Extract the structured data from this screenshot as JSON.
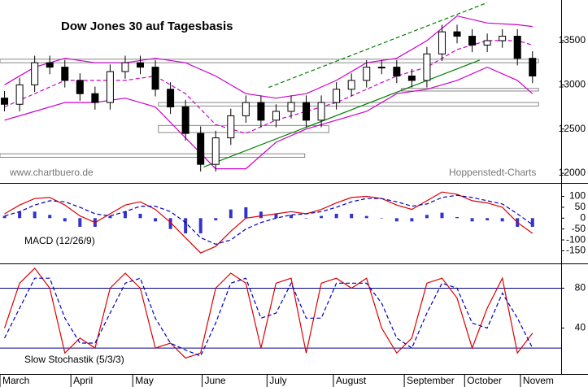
{
  "chart_data": [
    {
      "type": "candlestick",
      "title": "Dow Jones 30 auf Tagesbasis",
      "annotations": [
        "www.chartbuero.de",
        "Hoppenstedt-Charts"
      ],
      "xlim": [
        -0.3,
        36.9
      ],
      "ylim": [
        11890,
        13960
      ],
      "yticks": [
        12000,
        12500,
        13000,
        13500
      ],
      "x": [
        0,
        1,
        2,
        3,
        4,
        5,
        6,
        7,
        8,
        9,
        10,
        11,
        12,
        13,
        14,
        15,
        16,
        17,
        18,
        19,
        20,
        21,
        22,
        23,
        24,
        25,
        26,
        27,
        28,
        29,
        30,
        31,
        32,
        33,
        34,
        35
      ],
      "open": [
        12850,
        12780,
        13000,
        13250,
        13200,
        13050,
        12900,
        12800,
        13150,
        13250,
        13200,
        12950,
        12750,
        12450,
        12100,
        12400,
        12650,
        12800,
        12600,
        12700,
        12800,
        12600,
        12800,
        12950,
        13050,
        13200,
        13200,
        13100,
        13050,
        13350,
        13600,
        13550,
        13450,
        13500,
        13550,
        13300
      ],
      "high": [
        12930,
        13080,
        13330,
        13330,
        13280,
        13130,
        12980,
        13230,
        13330,
        13330,
        13280,
        13030,
        12830,
        12530,
        12480,
        12730,
        12880,
        12880,
        12780,
        12880,
        12880,
        12880,
        13030,
        13130,
        13280,
        13280,
        13280,
        13180,
        13430,
        13680,
        13680,
        13630,
        13580,
        13630,
        13630,
        13380
      ],
      "low": [
        12700,
        12700,
        12920,
        13120,
        12970,
        12820,
        12720,
        12720,
        13070,
        13120,
        12870,
        12670,
        12370,
        12020,
        12020,
        12320,
        12570,
        12520,
        12520,
        12620,
        12520,
        12520,
        12720,
        12870,
        12970,
        13120,
        13020,
        12970,
        12970,
        13270,
        13470,
        13370,
        13370,
        13420,
        13220,
        13020
      ],
      "close": [
        12780,
        13000,
        13250,
        13200,
        13050,
        12900,
        12800,
        13150,
        13250,
        13200,
        12950,
        12750,
        12450,
        12100,
        12400,
        12650,
        12800,
        12600,
        12700,
        12800,
        12600,
        12800,
        12950,
        13050,
        13200,
        13200,
        13100,
        13050,
        13350,
        13600,
        13550,
        13450,
        13500,
        13550,
        13300,
        13100
      ],
      "overlays": [
        {
          "color": "#cc00cc",
          "dashed": false,
          "x": [
            0,
            2,
            4,
            6,
            8,
            10,
            12,
            14,
            16,
            18,
            20,
            22,
            24,
            26,
            28,
            30,
            32,
            34,
            35
          ],
          "values": [
            13000,
            13200,
            13300,
            13250,
            13250,
            13300,
            13250,
            13100,
            12900,
            12850,
            12900,
            13050,
            13250,
            13300,
            13500,
            13780,
            13700,
            13680,
            13660
          ]
        },
        {
          "color": "#cc00cc",
          "dashed": true,
          "x": [
            0,
            2,
            4,
            6,
            8,
            10,
            12,
            14,
            16,
            18,
            20,
            22,
            24,
            26,
            28,
            30,
            32,
            34,
            35
          ],
          "values": [
            12750,
            12900,
            13050,
            13050,
            13050,
            13100,
            12900,
            12550,
            12450,
            12600,
            12700,
            12800,
            12950,
            13100,
            13200,
            13400,
            13500,
            13500,
            13450
          ]
        },
        {
          "color": "#cc00cc",
          "dashed": false,
          "x": [
            0,
            2,
            4,
            6,
            8,
            10,
            12,
            14,
            16,
            18,
            20,
            22,
            24,
            26,
            28,
            30,
            32,
            34,
            35
          ],
          "values": [
            12600,
            12700,
            12800,
            12800,
            12850,
            12750,
            12400,
            12050,
            12050,
            12350,
            12500,
            12600,
            12700,
            12900,
            12950,
            13050,
            13200,
            13050,
            12900
          ]
        },
        {
          "color": "#008000",
          "dashed": false,
          "x": [
            13.2,
            31.5
          ],
          "values": [
            12070,
            13280
          ]
        },
        {
          "color": "#008000",
          "dashed": true,
          "x": [
            17.5,
            32
          ],
          "values": [
            12970,
            13930
          ]
        }
      ],
      "zones": [
        {
          "x": [
            -0.3,
            35.4
          ],
          "range": [
            13250,
            13290
          ]
        },
        {
          "x": [
            10.2,
            35.4
          ],
          "range": [
            12760,
            12800
          ]
        },
        {
          "x": [
            10.2,
            21.5
          ],
          "range": [
            12460,
            12540
          ]
        },
        {
          "x": [
            -0.3,
            19.9
          ],
          "range": [
            12180,
            12220
          ]
        },
        {
          "x": [
            26.3,
            35.4
          ],
          "range": [
            12930,
            12960
          ]
        }
      ]
    },
    {
      "type": "macd",
      "title": "MACD (12/26/9)",
      "xlim": [
        -0.3,
        36.9
      ],
      "ylim": [
        -208,
        158
      ],
      "yticks": [
        -150,
        -100,
        -50,
        0,
        50,
        100
      ],
      "x": [
        0,
        1,
        2,
        3,
        4,
        5,
        6,
        7,
        8,
        9,
        10,
        11,
        12,
        13,
        14,
        15,
        16,
        17,
        18,
        19,
        20,
        21,
        22,
        23,
        24,
        25,
        26,
        27,
        28,
        29,
        30,
        31,
        32,
        33,
        34,
        35
      ],
      "series": [
        {
          "color": "#dd0000",
          "dashed": false,
          "values": [
            20,
            60,
            90,
            95,
            60,
            10,
            -20,
            20,
            60,
            75,
            40,
            -20,
            -90,
            -160,
            -130,
            -60,
            0,
            10,
            20,
            30,
            20,
            40,
            70,
            95,
            100,
            90,
            60,
            40,
            80,
            120,
            110,
            80,
            70,
            50,
            -20,
            -70
          ]
        },
        {
          "color": "#0000bb",
          "dashed": true,
          "values": [
            10,
            30,
            60,
            80,
            75,
            50,
            20,
            10,
            30,
            55,
            55,
            30,
            -20,
            -90,
            -120,
            -100,
            -50,
            -20,
            0,
            15,
            20,
            30,
            50,
            75,
            90,
            90,
            75,
            55,
            65,
            95,
            105,
            95,
            80,
            65,
            20,
            -30
          ]
        }
      ],
      "histogram": {
        "color": "#3333cc",
        "values": [
          10,
          30,
          30,
          15,
          -15,
          -40,
          -40,
          10,
          30,
          20,
          -15,
          -50,
          -70,
          -70,
          -10,
          40,
          50,
          30,
          20,
          15,
          0,
          10,
          20,
          20,
          10,
          0,
          -15,
          -15,
          15,
          25,
          5,
          -15,
          -10,
          -15,
          -40,
          -40
        ]
      }
    },
    {
      "type": "stochastic",
      "title": "Slow Stochastik (5/3/3)",
      "xlim": [
        -0.3,
        36.9
      ],
      "ylim": [
        -6,
        104
      ],
      "yticks": [
        40,
        80
      ],
      "reference_lines": [
        80,
        20
      ],
      "xticks": [
        {
          "value": -0.3,
          "label": "March"
        },
        {
          "value": 4.4,
          "label": "April"
        },
        {
          "value": 8.5,
          "label": "May"
        },
        {
          "value": 13.1,
          "label": "June"
        },
        {
          "value": 17.4,
          "label": "July"
        },
        {
          "value": 21.8,
          "label": "August"
        },
        {
          "value": 26.5,
          "label": "September"
        },
        {
          "value": 30.5,
          "label": "October"
        },
        {
          "value": 34.2,
          "label": "Novem"
        }
      ],
      "x": [
        0,
        1,
        2,
        3,
        4,
        5,
        6,
        7,
        8,
        9,
        10,
        11,
        12,
        13,
        14,
        15,
        16,
        17,
        18,
        19,
        20,
        21,
        22,
        23,
        24,
        25,
        26,
        27,
        28,
        29,
        30,
        31,
        32,
        33,
        34,
        35
      ],
      "series": [
        {
          "color": "#dd0000",
          "dashed": false,
          "values": [
            40,
            85,
            100,
            80,
            15,
            30,
            20,
            80,
            95,
            80,
            20,
            25,
            10,
            15,
            80,
            95,
            85,
            20,
            85,
            90,
            15,
            85,
            90,
            80,
            90,
            40,
            15,
            30,
            85,
            90,
            70,
            20,
            60,
            90,
            15,
            35
          ]
        },
        {
          "color": "#0000bb",
          "dashed": true,
          "values": [
            30,
            60,
            90,
            90,
            50,
            25,
            25,
            55,
            85,
            90,
            50,
            25,
            18,
            12,
            45,
            85,
            90,
            50,
            55,
            85,
            50,
            50,
            85,
            85,
            85,
            65,
            30,
            20,
            55,
            85,
            80,
            45,
            40,
            75,
            50,
            20
          ]
        }
      ]
    }
  ]
}
